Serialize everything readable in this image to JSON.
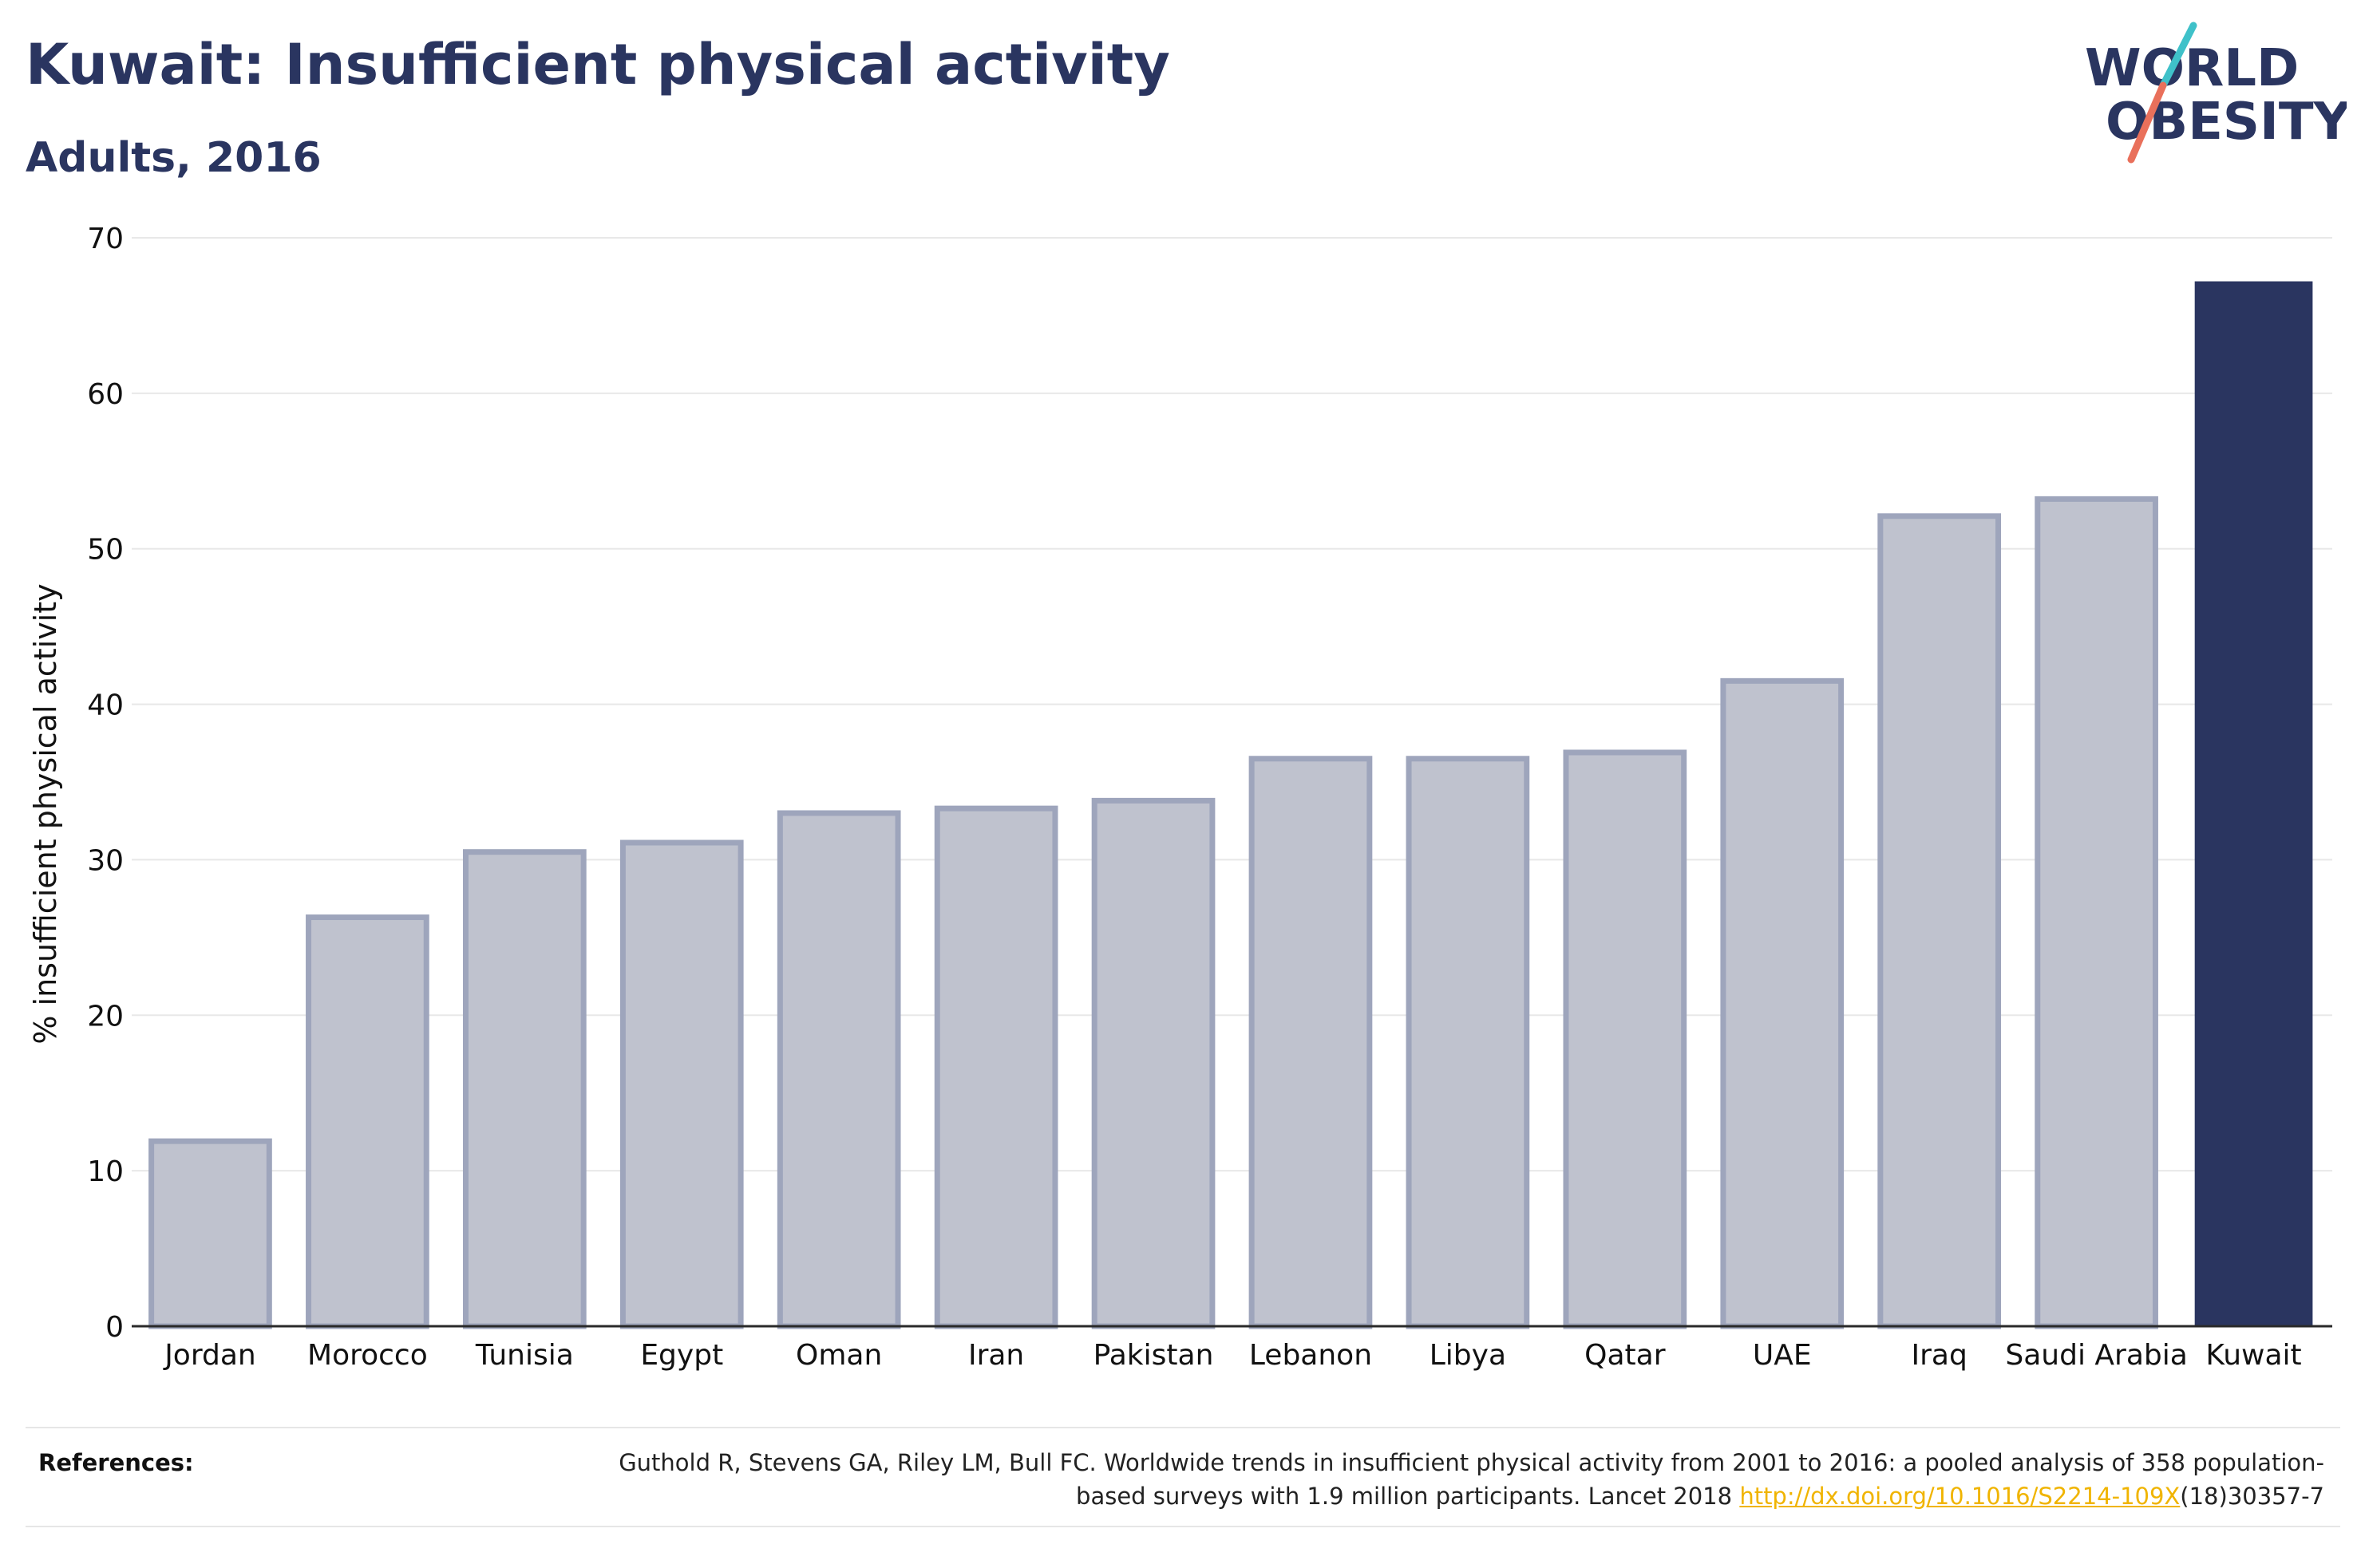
{
  "title": "Kuwait: Insufficient physical activity",
  "subtitle": "Adults, 2016",
  "logo": {
    "line1": "WORLD",
    "line2": "OBESITY",
    "colors": {
      "text": "#2a3560",
      "slash_teal": "#3fc1c9",
      "slash_coral": "#e9705b"
    }
  },
  "references": {
    "label": "References:",
    "text_before": "Guthold R, Stevens GA, Riley LM, Bull FC. Worldwide trends in insufficient physical activity from 2001 to 2016: a pooled analysis of 358 population-based surveys with 1.9 million participants. Lancet 2018 ",
    "link": "http://dx.doi.org/10.1016/S2214-109X",
    "text_after": "(18)30357-7"
  },
  "chart_data": {
    "type": "bar",
    "title": "Kuwait: Insufficient physical activity",
    "subtitle": "Adults, 2016",
    "xlabel": "",
    "ylabel": "% insufficient physical activity",
    "ylim": [
      0,
      70
    ],
    "yticks": [
      0,
      10,
      20,
      30,
      40,
      50,
      60,
      70
    ],
    "grid": true,
    "categories": [
      "Jordan",
      "Morocco",
      "Tunisia",
      "Egypt",
      "Oman",
      "Iran",
      "Pakistan",
      "Lebanon",
      "Libya",
      "Qatar",
      "UAE",
      "Iraq",
      "Saudi Arabia",
      "Kuwait"
    ],
    "values": [
      11.9,
      26.3,
      30.5,
      31.1,
      33.0,
      33.3,
      33.8,
      36.5,
      36.5,
      36.9,
      41.5,
      52.1,
      53.2,
      67.2
    ],
    "highlight": "Kuwait",
    "colors": {
      "highlight": "#2a3560",
      "other_fill": "#bfc2ce",
      "other_stroke": "#9ea5bc",
      "axis": "#2a2a2a",
      "grid": "#e8e8e8"
    }
  }
}
